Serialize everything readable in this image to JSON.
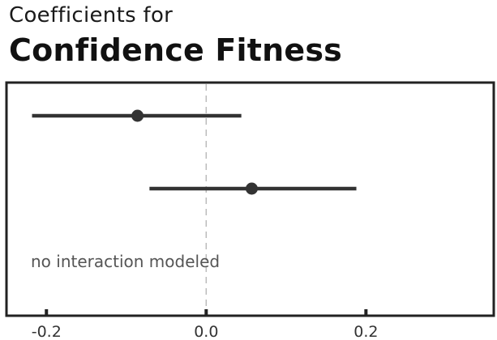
{
  "chart_data": {
    "type": "scatter",
    "subtitle": "Coefficients for",
    "title": "Confidence Fitness",
    "xlabel": "",
    "ylabel": "",
    "xlim": [
      -0.25,
      0.36
    ],
    "x_ticks": [
      -0.2,
      0.0,
      0.2
    ],
    "x_tick_labels": [
      "-0.2",
      "0.0",
      "0.2"
    ],
    "reference_line_x": 0.0,
    "grid": false,
    "legend": "none",
    "points": [
      {
        "estimate": -0.086,
        "lower": -0.218,
        "upper": 0.044
      },
      {
        "estimate": 0.057,
        "lower": -0.071,
        "upper": 0.188
      }
    ],
    "annotation": "no interaction modeled",
    "colors": {
      "point": "#333333",
      "interval": "#333333",
      "frame": "#222222",
      "reference_line": "#bbbbbb"
    }
  }
}
